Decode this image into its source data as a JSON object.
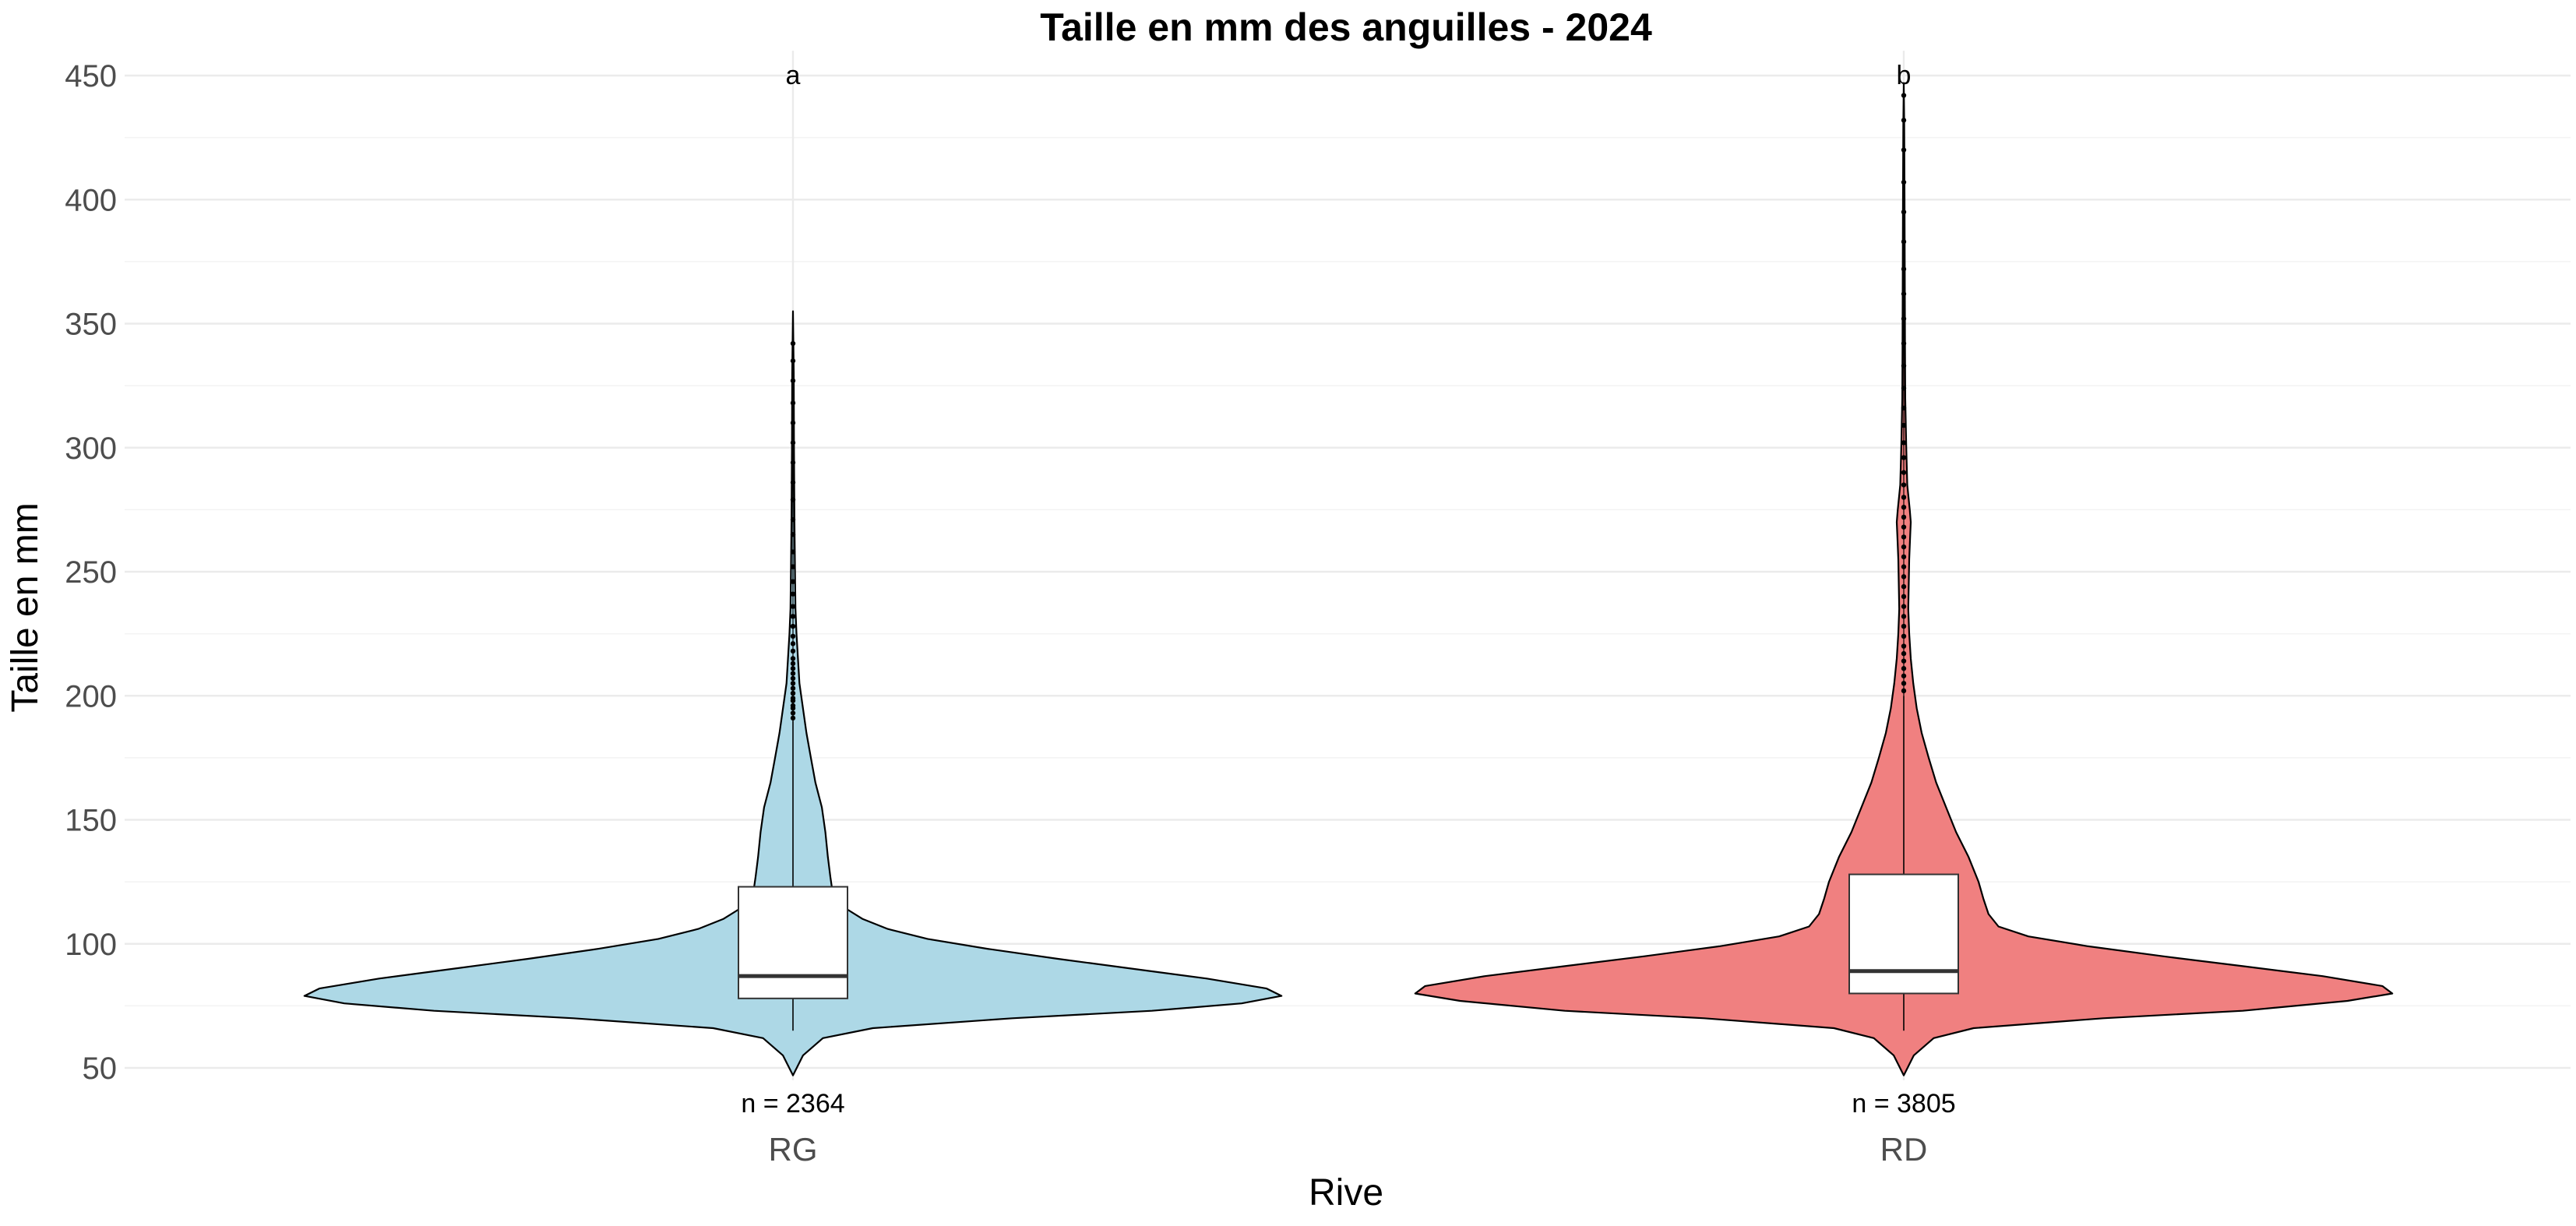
{
  "chart_data": {
    "type": "violin",
    "title": "Taille en mm des anguilles - 2024",
    "xlabel": "Rive",
    "ylabel": "Taille en mm",
    "ylim": [
      45,
      460
    ],
    "yticks": [
      "50",
      "100",
      "150",
      "200",
      "250",
      "300",
      "350",
      "400",
      "450"
    ],
    "grid": true,
    "legend": "none",
    "categories": [
      "RG",
      "RD"
    ],
    "groups": [
      {
        "category": "RG",
        "color": "#add8e6",
        "letter": "a",
        "count_label": "n = 2364",
        "n": 2364,
        "min": 65,
        "q1": 78,
        "median": 87,
        "q3": 123,
        "whisker_high": 190,
        "max": 355,
        "density": [
          [
            47,
            0
          ],
          [
            55,
            0.02
          ],
          [
            62,
            0.06
          ],
          [
            66,
            0.16
          ],
          [
            70,
            0.44
          ],
          [
            73,
            0.72
          ],
          [
            76,
            0.9
          ],
          [
            79,
            0.98
          ],
          [
            82,
            0.95
          ],
          [
            86,
            0.83
          ],
          [
            90,
            0.68
          ],
          [
            94,
            0.53
          ],
          [
            98,
            0.39
          ],
          [
            102,
            0.27
          ],
          [
            106,
            0.19
          ],
          [
            110,
            0.14
          ],
          [
            115,
            0.1
          ],
          [
            120,
            0.08
          ],
          [
            127,
            0.075
          ],
          [
            135,
            0.07
          ],
          [
            145,
            0.065
          ],
          [
            155,
            0.058
          ],
          [
            165,
            0.045
          ],
          [
            175,
            0.036
          ],
          [
            185,
            0.027
          ],
          [
            195,
            0.02
          ],
          [
            205,
            0.013
          ],
          [
            215,
            0.01
          ],
          [
            225,
            0.007
          ],
          [
            235,
            0.005
          ],
          [
            250,
            0.004
          ],
          [
            270,
            0.003
          ],
          [
            300,
            0.002
          ],
          [
            330,
            0.0015
          ],
          [
            355,
            0
          ]
        ],
        "outliers": [
          191,
          193,
          195,
          196,
          198,
          199,
          201,
          203,
          205,
          207,
          209,
          211,
          213,
          215,
          218,
          221,
          224,
          228,
          232,
          236,
          241,
          246,
          252,
          258,
          265,
          271,
          279,
          286,
          294,
          302,
          310,
          318,
          327,
          335,
          342
        ]
      },
      {
        "category": "RD",
        "color": "#f08080",
        "letter": "b",
        "count_label": "n = 3805",
        "n": 3805,
        "min": 65,
        "q1": 80,
        "median": 89,
        "q3": 128,
        "whisker_high": 200,
        "max": 447,
        "density": [
          [
            47,
            0
          ],
          [
            55,
            0.02
          ],
          [
            62,
            0.06
          ],
          [
            66,
            0.14
          ],
          [
            70,
            0.4
          ],
          [
            73,
            0.68
          ],
          [
            77,
            0.89
          ],
          [
            80,
            0.98
          ],
          [
            83,
            0.96
          ],
          [
            87,
            0.84
          ],
          [
            91,
            0.68
          ],
          [
            95,
            0.52
          ],
          [
            99,
            0.37
          ],
          [
            103,
            0.25
          ],
          [
            107,
            0.19
          ],
          [
            112,
            0.17
          ],
          [
            118,
            0.16
          ],
          [
            125,
            0.15
          ],
          [
            135,
            0.13
          ],
          [
            145,
            0.105
          ],
          [
            155,
            0.085
          ],
          [
            165,
            0.065
          ],
          [
            175,
            0.05
          ],
          [
            185,
            0.036
          ],
          [
            195,
            0.026
          ],
          [
            205,
            0.019
          ],
          [
            215,
            0.014
          ],
          [
            225,
            0.011
          ],
          [
            235,
            0.009
          ],
          [
            245,
            0.01
          ],
          [
            255,
            0.011
          ],
          [
            265,
            0.013
          ],
          [
            270,
            0.014
          ],
          [
            275,
            0.012
          ],
          [
            285,
            0.007
          ],
          [
            300,
            0.005
          ],
          [
            320,
            0.003
          ],
          [
            340,
            0.0025
          ],
          [
            370,
            0.002
          ],
          [
            400,
            0.0015
          ],
          [
            430,
            0.001
          ],
          [
            447,
            0
          ]
        ],
        "outliers": [
          202,
          205,
          208,
          211,
          214,
          217,
          220,
          224,
          228,
          232,
          236,
          240,
          244,
          248,
          252,
          256,
          260,
          264,
          268,
          272,
          276,
          280,
          285,
          290,
          296,
          302,
          309,
          316,
          324,
          333,
          342,
          352,
          362,
          372,
          383,
          395,
          407,
          420,
          432,
          442
        ]
      }
    ]
  }
}
